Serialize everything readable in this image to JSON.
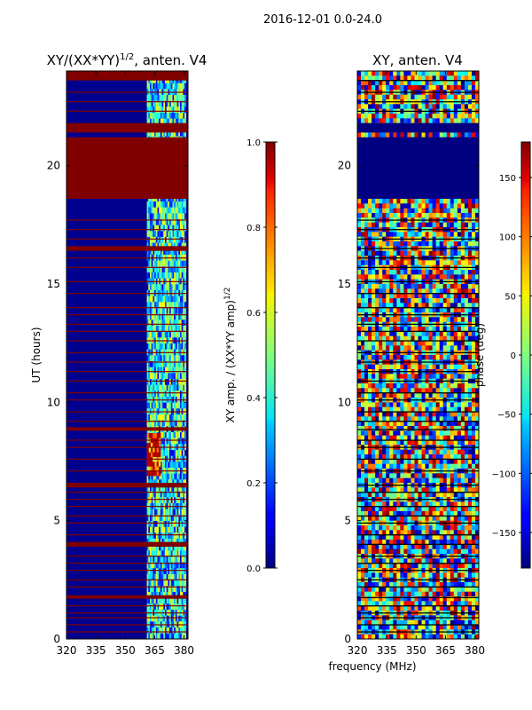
{
  "suptitle": "2016-12-01 0.0-24.0",
  "colors": {
    "darkred": "#800000",
    "darkblue": "#00008f",
    "blue": "#0020ff",
    "cyan": "#00e5ff",
    "green": "#7fff7f",
    "yellow": "#ffe000",
    "orange": "#ff7f00",
    "red": "#e00000",
    "black": "#000000"
  },
  "chart_data": [
    {
      "type": "heatmap",
      "title_main": "XY/(XX*YY)",
      "title_sup": "1/2",
      "title_rest": ", anten. V4",
      "xlabel": "",
      "ylabel": "UT (hours)",
      "xlim": [
        320,
        382
      ],
      "ylim": [
        0,
        24
      ],
      "xticks": [
        "320",
        "335",
        "350",
        "365",
        "380"
      ],
      "xtick_values": [
        320,
        335,
        350,
        365,
        380
      ],
      "yticks": [
        "0",
        "5",
        "10",
        "15",
        "20"
      ],
      "ytick_values": [
        0,
        5,
        10,
        15,
        20
      ],
      "colorbar": {
        "label": "XY amp. / (XX*YY amp)",
        "label_sup": "1/2",
        "range": [
          0.0,
          1.0
        ],
        "ticks": [
          "0.0",
          "0.2",
          "0.4",
          "0.6",
          "0.8",
          "1.0"
        ],
        "tick_values": [
          0.0,
          0.2,
          0.4,
          0.6,
          0.8,
          1.0
        ]
      },
      "blocks": [
        {
          "t0": 18.6,
          "t1": 21.2,
          "value": 1.0
        },
        {
          "t0": 21.4,
          "t1": 21.8,
          "value": 1.0
        },
        {
          "t0": 23.6,
          "t1": 24.0,
          "value": 1.0
        },
        {
          "t0": 16.4,
          "t1": 16.6,
          "value": 1.0
        },
        {
          "t0": 6.4,
          "t1": 6.6,
          "value": 1.0
        },
        {
          "t0": 3.9,
          "t1": 4.1,
          "value": 1.0
        },
        {
          "t0": 1.7,
          "t1": 1.85,
          "value": 1.0
        },
        {
          "t0": 8.8,
          "t1": 8.95,
          "value": 1.0
        }
      ],
      "lines": [
        0.3,
        0.6,
        0.9,
        1.1,
        1.4,
        2.2,
        2.5,
        2.9,
        3.2,
        3.5,
        4.4,
        4.9,
        5.2,
        5.6,
        5.9,
        6.2,
        7.1,
        7.6,
        8.1,
        8.4,
        9.2,
        9.6,
        10.1,
        10.4,
        10.9,
        11.3,
        11.7,
        12.1,
        12.6,
        13.0,
        13.3,
        13.7,
        14.0,
        14.6,
        15.1,
        15.7,
        16.1,
        16.9,
        17.3,
        17.7,
        22.3,
        22.7,
        23.1
      ],
      "band": {
        "f0": 361,
        "f1": 381
      },
      "hot_patch": {
        "f0": 361,
        "f1": 368,
        "t0": 6.9,
        "t1": 8.6,
        "value": 0.95
      }
    },
    {
      "type": "heatmap",
      "title": "XY, anten. V4",
      "xlabel": "frequency (MHz)",
      "ylabel": "",
      "xlim": [
        320,
        382
      ],
      "ylim": [
        0,
        24
      ],
      "xticks": [
        "320",
        "335",
        "350",
        "365",
        "380"
      ],
      "xtick_values": [
        320,
        335,
        350,
        365,
        380
      ],
      "yticks": [
        "0",
        "5",
        "10",
        "15",
        "20"
      ],
      "ytick_values": [
        0,
        5,
        10,
        15,
        20
      ],
      "colorbar": {
        "label": "phase (deg)",
        "range": [
          -180,
          180
        ],
        "ticks": [
          "150",
          "100",
          "50",
          "0",
          "−50",
          "−100",
          "−150"
        ],
        "tick_values": [
          150,
          100,
          50,
          0,
          -50,
          -100,
          -150
        ]
      },
      "blocks": [
        {
          "t0": 18.6,
          "t1": 21.2,
          "value": -180
        },
        {
          "t0": 21.4,
          "t1": 21.8,
          "value": -180
        }
      ],
      "lines": [
        0.3,
        0.6,
        0.9,
        1.1,
        1.4,
        1.75,
        2.2,
        2.5,
        2.9,
        3.2,
        3.5,
        4.0,
        4.4,
        4.9,
        5.2,
        5.6,
        5.9,
        6.2,
        6.5,
        7.1,
        7.6,
        8.1,
        8.4,
        8.85,
        9.2,
        9.6,
        10.1,
        10.4,
        10.9,
        11.3,
        11.7,
        12.1,
        12.6,
        13.0,
        13.3,
        13.7,
        14.0,
        14.6,
        15.1,
        15.7,
        16.1,
        16.5,
        16.9,
        17.3,
        17.7,
        22.3,
        22.7,
        23.1,
        23.6
      ]
    }
  ]
}
